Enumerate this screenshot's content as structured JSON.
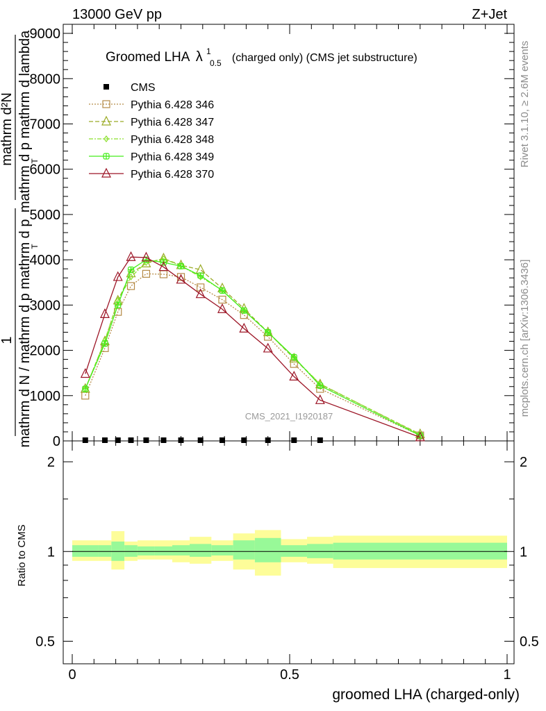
{
  "header": {
    "left": "13000 GeV pp",
    "right": "Z+Jet"
  },
  "side_labels": {
    "rivet": "Rivet 3.1.10, ≥ 2.6M events",
    "mcplots": "mcplots.cern.ch [arXiv:1306.3436]"
  },
  "watermark": "CMS_2021_I1920187",
  "colors": {
    "p346": "#b58a45",
    "p347": "#9aab26",
    "p348": "#8be02c",
    "p349": "#44ee1a",
    "p370": "#9c1526",
    "band_inner": "#98f998",
    "band_outer": "#fdfd99"
  },
  "chart_data": [
    {
      "type": "line",
      "title_main": "Groomed LHA",
      "title_symbol": "λ",
      "title_sup": "1",
      "title_sub": "0.5",
      "title_rest": "(charged only) (CMS jet substructure)",
      "xlabel": "",
      "ylabel_numerator": "1",
      "ylabel_denominator_lines": [
        "mathrm d N / mathrm d p mathrm d p",
        "T"
      ],
      "ylabel_top_lines": [
        "mathrm d²N",
        "mathrm d p mathrm d lambda"
      ],
      "ylabel_sub_t": "T",
      "xlim": [
        0,
        1
      ],
      "ylim": [
        0,
        9200
      ],
      "yticks": [
        0,
        1000,
        2000,
        3000,
        4000,
        5000,
        6000,
        7000,
        8000,
        9000
      ],
      "ytick_labels": [
        "0",
        "1000",
        "2000",
        "3000",
        "4000",
        "5000",
        "6000",
        "7000",
        "8000",
        "9000"
      ],
      "legend_position": "top-left",
      "series": [
        {
          "name": "CMS",
          "color": "#000000",
          "marker": "filled-square",
          "x": [
            0.03,
            0.075,
            0.105,
            0.135,
            0.17,
            0.21,
            0.25,
            0.295,
            0.345,
            0.395,
            0.45,
            0.51,
            0.57
          ],
          "y": [
            0,
            0,
            0,
            0,
            0,
            0,
            0,
            0,
            0,
            0,
            0,
            0,
            0
          ]
        },
        {
          "name": "Pythia 6.428 346",
          "color": "#b58a45",
          "marker": "open-square",
          "dash": "2,2",
          "x": [
            0.03,
            0.075,
            0.105,
            0.135,
            0.17,
            0.21,
            0.25,
            0.295,
            0.345,
            0.395,
            0.45,
            0.51,
            0.57,
            0.8
          ],
          "y": [
            1000,
            2050,
            2850,
            3420,
            3690,
            3680,
            3620,
            3390,
            3120,
            2780,
            2300,
            1700,
            1150,
            120
          ]
        },
        {
          "name": "Pythia 6.428 347",
          "color": "#9aab26",
          "marker": "open-triangle",
          "dash": "6,3",
          "x": [
            0.03,
            0.075,
            0.105,
            0.135,
            0.17,
            0.21,
            0.25,
            0.295,
            0.345,
            0.395,
            0.45,
            0.51,
            0.57,
            0.8
          ],
          "y": [
            1150,
            2200,
            3100,
            3700,
            3920,
            4030,
            3880,
            3780,
            3370,
            2920,
            2400,
            1820,
            1250,
            150
          ]
        },
        {
          "name": "Pythia 6.428 348",
          "color": "#8be02c",
          "marker": "open-diamond",
          "dash": "6,2,2,2",
          "x": [
            0.03,
            0.075,
            0.105,
            0.135,
            0.17,
            0.21,
            0.25,
            0.295,
            0.345,
            0.395,
            0.45,
            0.51,
            0.57,
            0.8
          ],
          "y": [
            1140,
            2220,
            3100,
            3620,
            3940,
            4020,
            3870,
            3620,
            3330,
            2880,
            2400,
            1830,
            1260,
            140
          ]
        },
        {
          "name": "Pythia 6.428 349",
          "color": "#44ee1a",
          "marker": "open-cross",
          "dash": "",
          "x": [
            0.03,
            0.075,
            0.105,
            0.135,
            0.17,
            0.21,
            0.25,
            0.295,
            0.345,
            0.395,
            0.45,
            0.51,
            0.57,
            0.8
          ],
          "y": [
            1150,
            2150,
            3000,
            3780,
            4000,
            3940,
            3860,
            3650,
            3320,
            2880,
            2400,
            1850,
            1220,
            120
          ]
        },
        {
          "name": "Pythia 6.428 370",
          "color": "#9c1526",
          "marker": "open-triangle",
          "dash": "",
          "x": [
            0.03,
            0.075,
            0.105,
            0.135,
            0.17,
            0.21,
            0.25,
            0.295,
            0.345,
            0.395,
            0.45,
            0.51,
            0.57,
            0.8
          ],
          "y": [
            1480,
            2800,
            3620,
            4060,
            4050,
            3840,
            3560,
            3240,
            2910,
            2480,
            2040,
            1420,
            900,
            80
          ]
        }
      ]
    },
    {
      "type": "area",
      "xlabel": "groomed LHA (charged-only)",
      "ylabel": "Ratio to CMS",
      "xlim": [
        0,
        1
      ],
      "ylim": [
        0.42,
        2.35
      ],
      "log_y": true,
      "xticks": [
        0,
        0.5,
        1
      ],
      "xtick_labels": [
        "0",
        "0.5",
        "1"
      ],
      "yticks": [
        0.5,
        1,
        2
      ],
      "ytick_labels": [
        "0.5",
        "1",
        "2"
      ],
      "reference_line": 1,
      "bands": {
        "edges": [
          0.0,
          0.06,
          0.09,
          0.12,
          0.15,
          0.19,
          0.23,
          0.27,
          0.32,
          0.37,
          0.42,
          0.48,
          0.54,
          0.6,
          1.0
        ],
        "inner_lo": [
          0.96,
          0.96,
          0.93,
          0.96,
          0.97,
          0.97,
          0.97,
          0.96,
          0.97,
          0.94,
          0.92,
          0.96,
          0.95,
          0.94,
          0.94
        ],
        "inner_hi": [
          1.05,
          1.05,
          1.08,
          1.05,
          1.04,
          1.04,
          1.05,
          1.06,
          1.05,
          1.09,
          1.11,
          1.05,
          1.06,
          1.07,
          1.07
        ],
        "outer_lo": [
          0.93,
          0.93,
          0.87,
          0.93,
          0.94,
          0.94,
          0.92,
          0.91,
          0.93,
          0.87,
          0.83,
          0.92,
          0.91,
          0.88,
          0.88
        ],
        "outer_hi": [
          1.09,
          1.09,
          1.17,
          1.08,
          1.09,
          1.09,
          1.09,
          1.12,
          1.09,
          1.15,
          1.18,
          1.1,
          1.12,
          1.13,
          1.13
        ]
      }
    }
  ]
}
